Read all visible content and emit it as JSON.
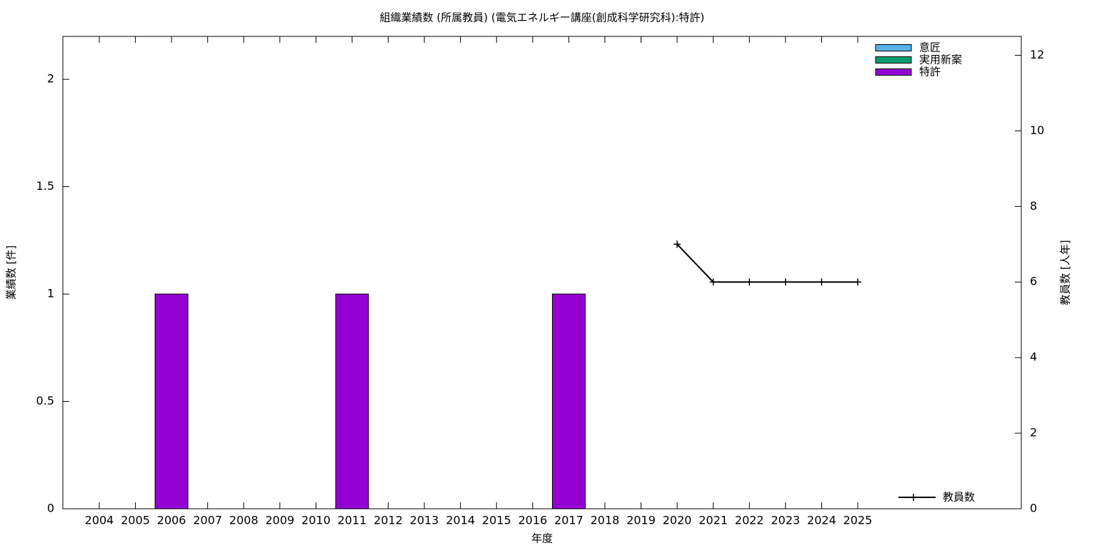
{
  "chart_data": {
    "type": "bar",
    "title": "組織業績数 (所属教員) (電気エネルギー講座(創成科学研究科):特許)",
    "x_label": "年度",
    "y_label": "業績数 [件]",
    "y2_label": "教員数 [人年]",
    "categories": [
      "2004",
      "2005",
      "2006",
      "2007",
      "2008",
      "2009",
      "2010",
      "2011",
      "2012",
      "2013",
      "2014",
      "2015",
      "2016",
      "2017",
      "2018",
      "2019",
      "2020",
      "2021",
      "2022",
      "2023",
      "2024",
      "2025"
    ],
    "stacked": true,
    "series": [
      {
        "name": "意匠",
        "color": "#56b4e9",
        "values": [
          0,
          0,
          0,
          0,
          0,
          0,
          0,
          0,
          0,
          0,
          0,
          0,
          0,
          0,
          0,
          0,
          0,
          0,
          0,
          0,
          0,
          0
        ]
      },
      {
        "name": "実用新案",
        "color": "#009e73",
        "values": [
          0,
          0,
          0,
          0,
          0,
          0,
          0,
          0,
          0,
          0,
          0,
          0,
          0,
          0,
          0,
          0,
          0,
          0,
          0,
          0,
          0,
          0
        ]
      },
      {
        "name": "特許",
        "color": "#9400d3",
        "values": [
          0,
          0,
          1,
          0,
          0,
          0,
          0,
          1,
          0,
          0,
          0,
          0,
          0,
          1,
          0,
          0,
          0,
          0,
          0,
          0,
          0,
          0
        ]
      },
      {
        "name": "教員数",
        "color": "#000000",
        "type": "line",
        "axis": "y2",
        "values": [
          null,
          null,
          null,
          null,
          null,
          null,
          null,
          null,
          null,
          null,
          null,
          null,
          null,
          null,
          null,
          null,
          7,
          6,
          6,
          6,
          6,
          6
        ]
      }
    ],
    "ylim": [
      0,
      2.2
    ],
    "yticks": [
      0,
      0.5,
      1,
      1.5,
      2
    ],
    "y2lim": [
      0,
      12.5
    ],
    "y2ticks": [
      0,
      2,
      4,
      6,
      8,
      10,
      12
    ],
    "legend": "top-right",
    "line_legend": "bottom-right"
  }
}
